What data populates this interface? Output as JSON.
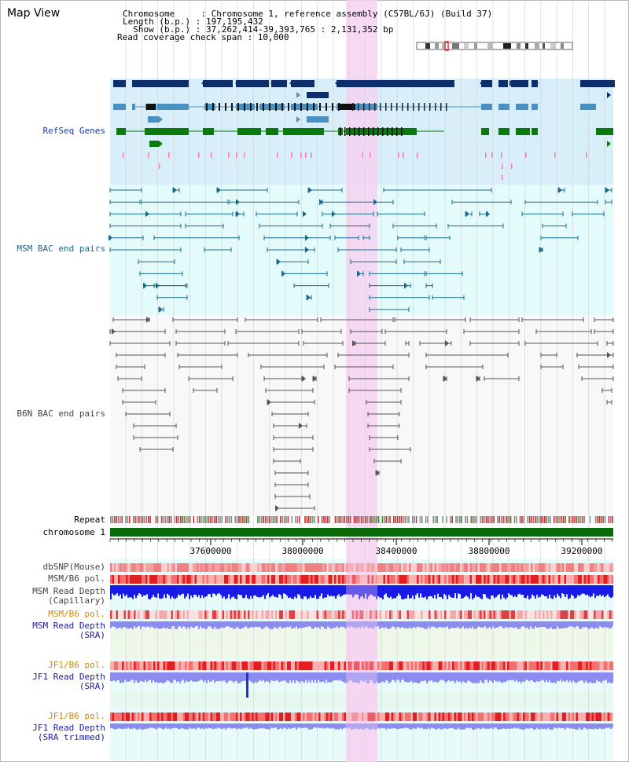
{
  "header": {
    "title": "Map View",
    "info_lines": [
      "Chromosome     : Chromosome 1, reference assembly (C57BL/6J) (Build 37)",
      "Length (b.p.) : 197,195,432",
      "  Show (b.p.) : 37,262,414-39,393,765 : 2,131,352 bp",
      "Read coverage check span : 10,000"
    ]
  },
  "tracks": {
    "refseq": "RefSeq Genes",
    "msm_bac": "MSM BAC end pairs",
    "b6n_bac": "B6N BAC end pairs",
    "repeat": "Repeat",
    "chromosome": "chromosome 1",
    "dbsnp": "dbSNP(Mouse)",
    "msm_b6_pol_1": "MSM/B6 pol.",
    "msm_read_depth_cap": "MSM Read Depth",
    "msm_read_depth_cap_sub": "(Capillary)",
    "msm_b6_pol_2": "MSM/B6 pol.",
    "msm_read_depth_sra": "MSM Read Depth",
    "msm_read_depth_sra_sub": "(SRA)",
    "jf1_b6_pol_1": "JF1/B6 pol.",
    "jf1_read_depth": "JF1 Read Depth",
    "jf1_read_depth_sub": "(SRA)",
    "jf1_b6_pol_2": "JF1/B6 pol.",
    "jf1_read_depth_trim": "JF1 Read Depth",
    "jf1_read_depth_trim_sub": "(SRA trimmed)"
  },
  "axis": {
    "ticks": [
      "37600000",
      "38000000",
      "38400000",
      "38800000",
      "39200000"
    ]
  },
  "colors": {
    "refseq_bg": "#d8eef8",
    "msm_bg": "#e4fbfb",
    "b6n_bg": "#f8f8f8",
    "highlight": "#f6d2f2",
    "gene_navy": "#0d2d6c",
    "gene_blue": "#4a90c0",
    "gene_green": "#0a7a0a",
    "bac_teal": "#1a6a8c",
    "bac_gray": "#555555",
    "chromosome": "#0a6a0a",
    "depth_blue": "#1a1ae6",
    "depth_light": "#8c8cf0"
  }
}
